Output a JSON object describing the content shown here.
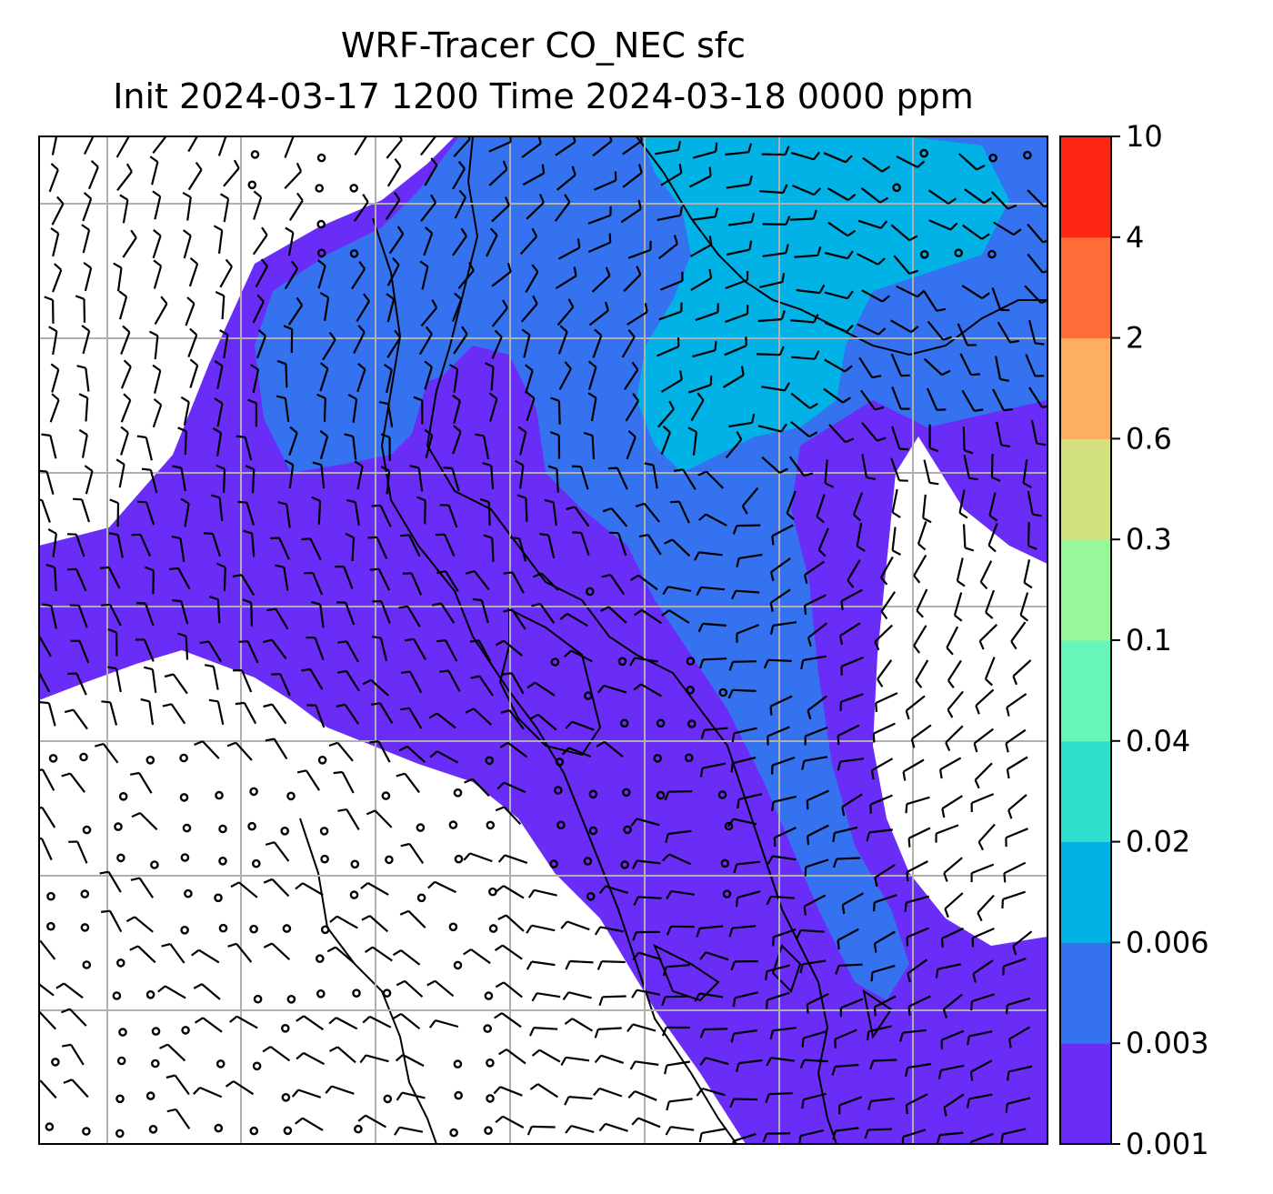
{
  "title": {
    "line1": "WRF-Tracer CO_NEC sfc",
    "line2": "Init 2024-03-17 1200 Time 2024-03-18 0000 ppm"
  },
  "colorbar": {
    "levels": [
      "0.001",
      "0.003",
      "0.006",
      "0.02",
      "0.04",
      "0.1",
      "0.3",
      "0.6",
      "2",
      "4",
      "10"
    ],
    "colors": [
      "#6a2cf7",
      "#3572f0",
      "#00b2e6",
      "#30e0cf",
      "#66f7b8",
      "#98f79b",
      "#d2e07e",
      "#fdae5f",
      "#fe6c37",
      "#fc2612"
    ]
  },
  "map": {
    "ocean_color": "#ffffff",
    "gridline_color": "#b0b0b0",
    "coastline_color": "#000000",
    "vector_symbols": [
      "wind-barb",
      "calm-circle"
    ]
  }
}
